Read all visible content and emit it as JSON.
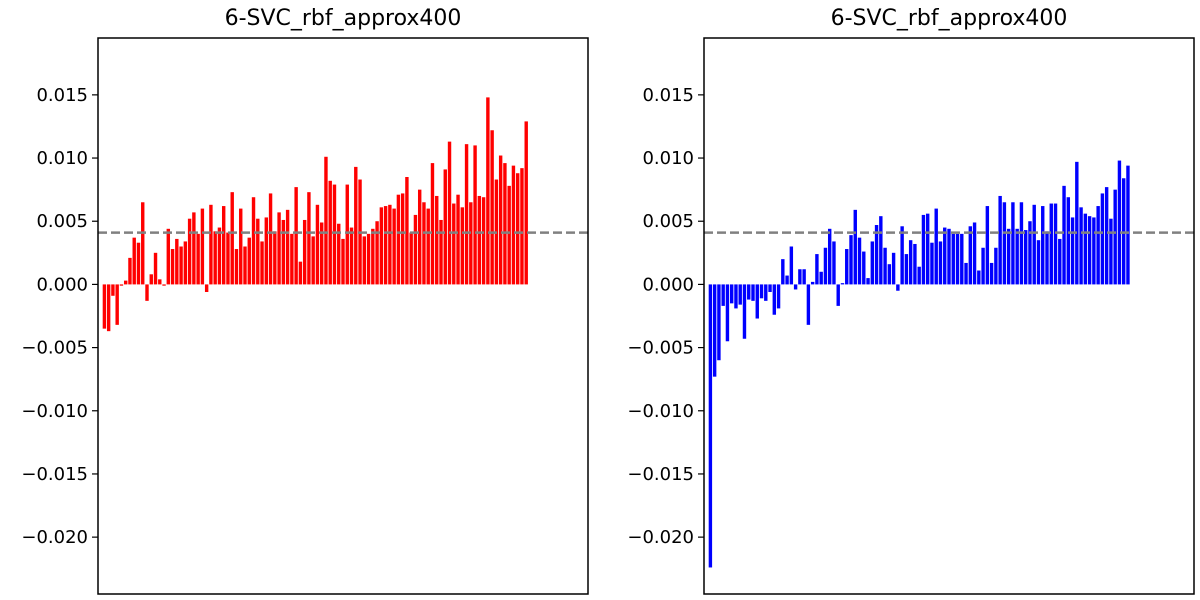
{
  "chart_data": [
    {
      "type": "bar",
      "title": "6-SVC_rbf_approx400",
      "xlabel": "",
      "ylabel": "",
      "ylim": [
        -0.0245,
        0.0195
      ],
      "yticks": [
        0.015,
        0.01,
        0.005,
        0.0,
        -0.005,
        -0.01,
        -0.015,
        -0.02
      ],
      "ytick_labels": [
        "0.015",
        "0.010",
        "0.005",
        "0.000",
        "−0.005",
        "−0.010",
        "−0.015",
        "−0.020"
      ],
      "xlim": [
        -1.5,
        113.5
      ],
      "bar_color": "#ff0000",
      "reference_line": {
        "y": 0.0041,
        "style": "dashed",
        "color": "#808080"
      },
      "values": [
        -0.0035,
        -0.0037,
        -0.0009,
        -0.0032,
        -0.0001,
        0.0003,
        0.0021,
        0.0037,
        0.0033,
        0.0065,
        -0.0013,
        0.0008,
        0.0025,
        0.0004,
        -0.0001,
        0.0044,
        0.0028,
        0.0036,
        0.003,
        0.0034,
        0.0052,
        0.0057,
        0.004,
        0.006,
        -0.0006,
        0.0063,
        0.0042,
        0.0045,
        0.0062,
        0.0041,
        0.0073,
        0.0028,
        0.006,
        0.003,
        0.0037,
        0.0069,
        0.0052,
        0.0034,
        0.0053,
        0.0072,
        0.0042,
        0.0057,
        0.0051,
        0.0059,
        0.004,
        0.0077,
        0.0018,
        0.0051,
        0.0073,
        0.0038,
        0.0063,
        0.0049,
        0.0101,
        0.0082,
        0.0079,
        0.0048,
        0.0036,
        0.0079,
        0.0045,
        0.0093,
        0.0083,
        0.0038,
        0.004,
        0.0044,
        0.005,
        0.0061,
        0.0062,
        0.0063,
        0.006,
        0.0071,
        0.0072,
        0.0085,
        0.0041,
        0.0055,
        0.0075,
        0.0065,
        0.006,
        0.0096,
        0.007,
        0.0051,
        0.0091,
        0.0113,
        0.0064,
        0.0071,
        0.0061,
        0.0111,
        0.0065,
        0.011,
        0.007,
        0.0069,
        0.0148,
        0.0122,
        0.0083,
        0.0102,
        0.0096,
        0.0078,
        0.0094,
        0.0088,
        0.0092,
        0.0129
      ]
    },
    {
      "type": "bar",
      "title": "6-SVC_rbf_approx400",
      "xlabel": "",
      "ylabel": "",
      "ylim": [
        -0.0245,
        0.0195
      ],
      "yticks": [
        0.015,
        0.01,
        0.005,
        0.0,
        -0.005,
        -0.01,
        -0.015,
        -0.02
      ],
      "ytick_labels": [
        "0.015",
        "0.010",
        "0.005",
        "0.000",
        "−0.005",
        "−0.010",
        "−0.015",
        "−0.020"
      ],
      "xlim": [
        -1.5,
        113.5
      ],
      "bar_color": "#0000ff",
      "reference_line": {
        "y": 0.0041,
        "style": "dashed",
        "color": "#808080"
      },
      "values": [
        -0.0224,
        -0.0073,
        -0.006,
        -0.0017,
        -0.0045,
        -0.0015,
        -0.0019,
        -0.0016,
        -0.0043,
        -0.0012,
        -0.0013,
        -0.0027,
        -0.0011,
        -0.0013,
        -0.0006,
        -0.0024,
        -0.0019,
        0.002,
        0.0007,
        0.003,
        -0.0004,
        0.0012,
        0.0012,
        -0.0032,
        0.0002,
        0.0024,
        0.001,
        0.0029,
        0.0044,
        0.0034,
        -0.0017,
        0.0001,
        0.0028,
        0.0039,
        0.0059,
        0.0037,
        0.0026,
        0.0005,
        0.0034,
        0.0047,
        0.0054,
        0.0029,
        0.0016,
        0.0025,
        -0.0005,
        0.0046,
        0.0024,
        0.0035,
        0.0032,
        0.0014,
        0.0055,
        0.0056,
        0.0033,
        0.006,
        0.0034,
        0.0045,
        0.0044,
        0.004,
        0.004,
        0.004,
        0.0017,
        0.0046,
        0.0049,
        0.0011,
        0.0029,
        0.0062,
        0.0017,
        0.0029,
        0.007,
        0.0065,
        0.0044,
        0.0065,
        0.0044,
        0.0065,
        0.0043,
        0.005,
        0.0063,
        0.0035,
        0.0062,
        0.0042,
        0.0064,
        0.0064,
        0.0036,
        0.0078,
        0.0069,
        0.0053,
        0.0097,
        0.0061,
        0.0056,
        0.0054,
        0.0053,
        0.0062,
        0.0072,
        0.0077,
        0.0052,
        0.0075,
        0.0098,
        0.0084,
        0.0094
      ]
    }
  ]
}
